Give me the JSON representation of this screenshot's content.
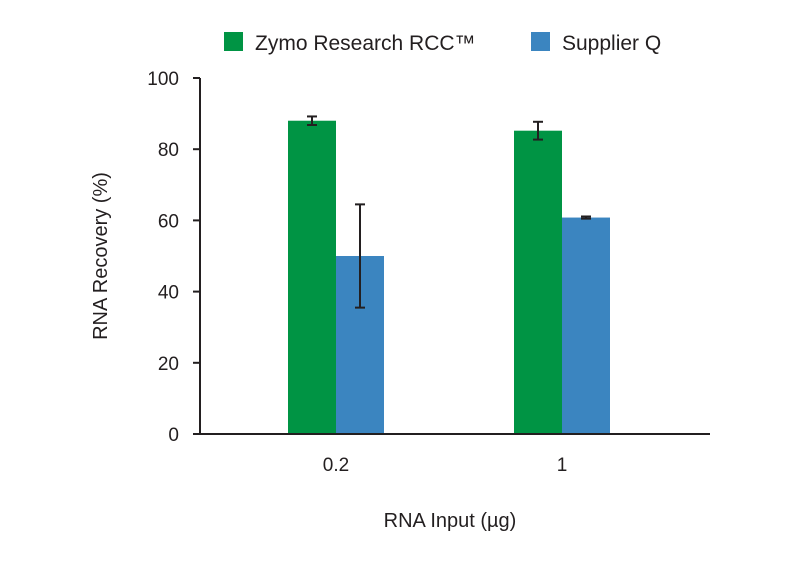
{
  "chart_data": {
    "type": "bar",
    "categories": [
      "0.2",
      "1"
    ],
    "series": [
      {
        "name": "Zymo Research RCC™",
        "color": "#009444",
        "values": [
          88,
          85.2
        ],
        "errors": [
          1.2,
          2.5
        ]
      },
      {
        "name": "Supplier Q",
        "color": "#3b85c0",
        "values": [
          50,
          60.8
        ],
        "errors": [
          14.5,
          0.3
        ]
      }
    ],
    "xlabel": "RNA Input (µg)",
    "ylabel": "RNA Recovery (%)",
    "ylim": [
      0,
      100
    ],
    "yticks": [
      0,
      20,
      40,
      60,
      80,
      100
    ],
    "grid": false,
    "legend_position": "top"
  }
}
